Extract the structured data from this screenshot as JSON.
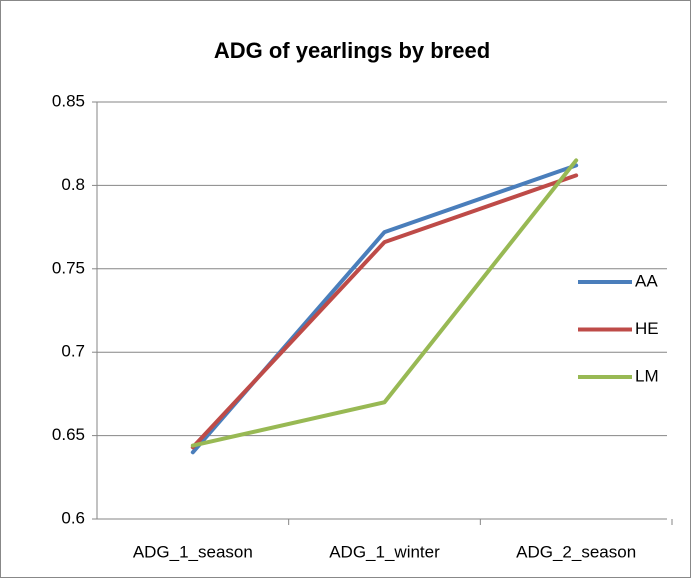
{
  "chart_data": {
    "type": "line",
    "title": "ADG of yearlings by breed",
    "categories": [
      "ADG_1_season",
      "ADG_1_winter",
      "ADG_2_season"
    ],
    "series": [
      {
        "name": "AA",
        "color": "#4a7ebb",
        "values": [
          0.64,
          0.772,
          0.812
        ]
      },
      {
        "name": "HE",
        "color": "#be4b48",
        "values": [
          0.643,
          0.766,
          0.806
        ]
      },
      {
        "name": "LM",
        "color": "#98b954",
        "values": [
          0.644,
          0.67,
          0.815
        ]
      }
    ],
    "ylim": [
      0.6,
      0.85
    ],
    "yticks": [
      0.6,
      0.65,
      0.7,
      0.75,
      0.8,
      0.85
    ],
    "grid": true,
    "legend": "right"
  }
}
